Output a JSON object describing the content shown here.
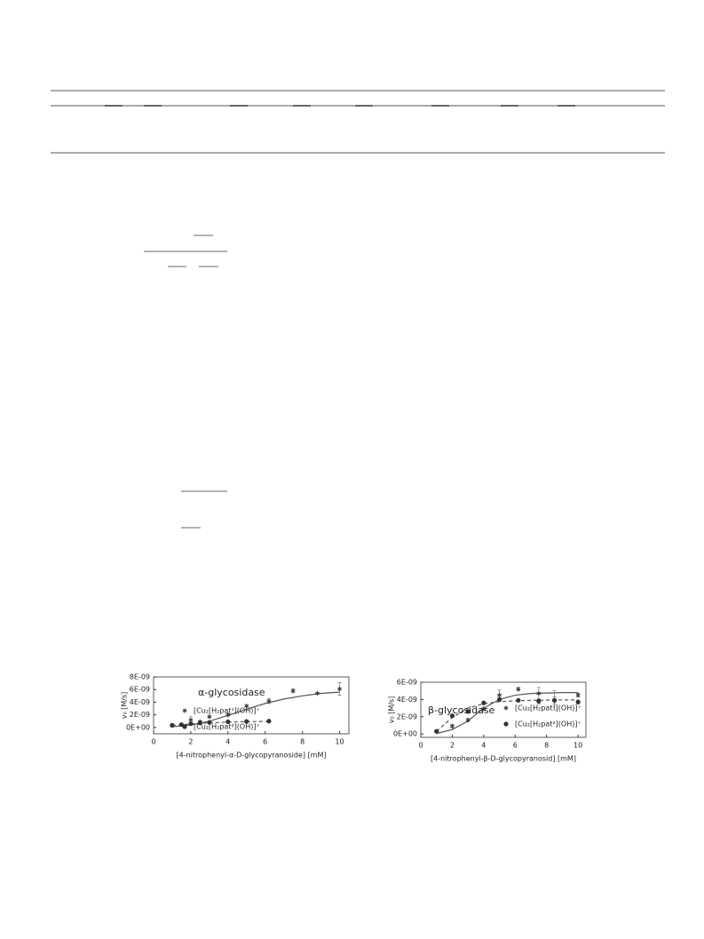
{
  "chart_data": [
    {
      "type": "scatter",
      "annotation": "α-glycosidase",
      "xlabel": "[4-nitrophenyl-α-D-glycopyranoside] [mM]",
      "ylabel": "v₀ [M/s]",
      "xlim": [
        0,
        10.5
      ],
      "xticks": [
        0,
        2,
        4,
        6,
        8,
        10
      ],
      "ylim": [
        -1e-09,
        8e-09
      ],
      "yticks": [
        {
          "value": 0,
          "label": "0E+00"
        },
        {
          "value": 2e-09,
          "label": "2E-09"
        },
        {
          "value": 4e-09,
          "label": "4E-09"
        },
        {
          "value": 6e-09,
          "label": "6E-09"
        },
        {
          "value": 8e-09,
          "label": "8E-09"
        }
      ],
      "legend": "upper left",
      "series": [
        {
          "name": "[Cu₂[H₂pat¹](OH)]⁺",
          "color": "#333333",
          "marker": "star",
          "x": [
            1,
            2,
            2.5,
            3,
            4,
            5,
            6.2,
            7.5,
            8.8,
            10
          ],
          "values": [
            3e-10,
            1.2e-09,
            9e-10,
            1.7e-09,
            2e-09,
            3.4e-09,
            4.2e-09,
            5.8e-09,
            5.4e-09,
            6.1e-09
          ],
          "errors": [
            1e-10,
            5e-10,
            2e-10,
            1.5e-10,
            2e-10,
            1.5e-10,
            4e-10,
            3e-10,
            1e-10,
            1e-09
          ]
        },
        {
          "name": "[Cu₂[H₂pat²](OH)]⁺",
          "color": "#333333",
          "marker": "circle",
          "x": [
            1,
            1.5,
            2,
            2.5,
            3,
            4,
            5,
            6.2
          ],
          "values": [
            3.5e-10,
            4.5e-10,
            6e-10,
            7e-10,
            8e-10,
            9e-10,
            9.5e-10,
            1e-09
          ],
          "errors": [
            5e-11,
            5e-11,
            1e-10,
            5e-11,
            5e-11,
            5e-11,
            5e-11,
            1.5e-10
          ]
        }
      ],
      "fits": [
        {
          "dashed": false,
          "x": [
            1,
            2,
            3,
            4,
            5,
            6,
            7,
            8,
            9,
            10
          ],
          "values": [
            1e-10,
            4e-10,
            1e-09,
            1.9e-09,
            2.9e-09,
            3.8e-09,
            4.5e-09,
            5e-09,
            5.4e-09,
            5.6e-09
          ]
        },
        {
          "dashed": true,
          "x": [
            1,
            2,
            3,
            4,
            5,
            6.2
          ],
          "values": [
            3e-10,
            5.5e-10,
            7.5e-10,
            8.5e-10,
            9.2e-10,
            9.7e-10
          ]
        }
      ]
    },
    {
      "type": "scatter",
      "annotation": "β-glycosidase",
      "xlabel": "[4-nitrophenyl-β-D-glycopyranosid] [mM]",
      "ylabel": "v₀ [M/s]",
      "xlim": [
        0,
        10.5
      ],
      "xticks": [
        0,
        2,
        4,
        6,
        8,
        10
      ],
      "ylim": [
        -4e-10,
        6e-09
      ],
      "yticks": [
        {
          "value": 0,
          "label": "0E+00"
        },
        {
          "value": 2e-09,
          "label": "2E-09"
        },
        {
          "value": 4e-09,
          "label": "4E-09"
        },
        {
          "value": 6e-09,
          "label": "6E-09"
        }
      ],
      "legend": "lower right",
      "series": [
        {
          "name": "[Cu₂[H₂pat¹](OH)]⁺",
          "color": "#333333",
          "marker": "star",
          "x": [
            1,
            2,
            3,
            4,
            5,
            6.2,
            7.5,
            8.5,
            10
          ],
          "values": [
            3e-10,
            9e-10,
            1.6e-09,
            2.9e-09,
            4.5e-09,
            5.2e-09,
            4.7e-09,
            3.9e-09,
            4.5e-09
          ],
          "errors": [
            1e-10,
            2e-10,
            2e-10,
            2e-10,
            6e-10,
            2e-10,
            7e-10,
            1.1e-09,
            2e-10
          ]
        },
        {
          "name": "[Cu₂[H₂pat²](OH)]⁺",
          "color": "#333333",
          "marker": "circle",
          "x": [
            1,
            2,
            3,
            4,
            5,
            6.2,
            7.5,
            8.5,
            10
          ],
          "values": [
            3e-10,
            2.1e-09,
            2.6e-09,
            3.6e-09,
            4e-09,
            3.9e-09,
            3.8e-09,
            3.9e-09,
            3.7e-09
          ],
          "errors": [
            1e-10,
            1e-10,
            1e-10,
            1e-10,
            2e-10,
            1e-10,
            3e-10,
            4e-10,
            2e-10
          ]
        }
      ],
      "fits": [
        {
          "dashed": false,
          "x": [
            1,
            2,
            3,
            4,
            5,
            6,
            7,
            8,
            9,
            10
          ],
          "values": [
            5e-11,
            5e-10,
            1.5e-09,
            3e-09,
            4e-09,
            4.5e-09,
            4.7e-09,
            4.75e-09,
            4.8e-09,
            4.8e-09
          ]
        },
        {
          "dashed": true,
          "x": [
            1,
            2,
            3,
            4,
            5,
            6,
            7,
            8,
            9,
            10
          ],
          "values": [
            3e-10,
            1.9e-09,
            3e-09,
            3.5e-09,
            3.75e-09,
            3.85e-09,
            3.9e-09,
            3.92e-09,
            3.95e-09,
            3.95e-09
          ]
        }
      ]
    }
  ]
}
